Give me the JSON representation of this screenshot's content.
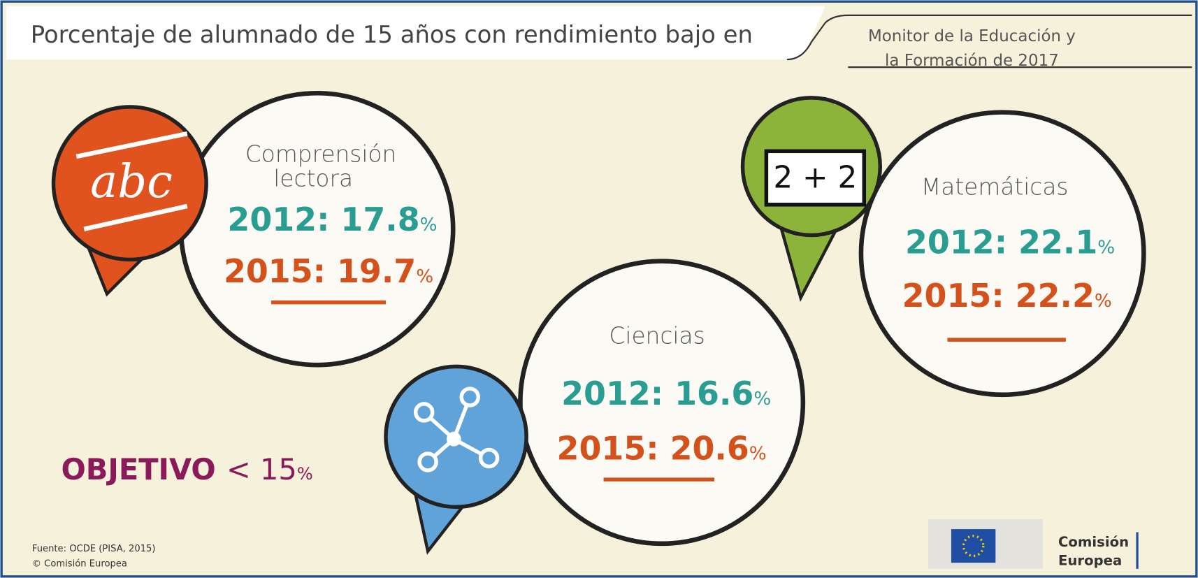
{
  "header": {
    "title": "Porcentaje de alumnado de 15 años con rendimiento bajo en",
    "publication": [
      "Monitor de la Educación y",
      "la Formación de 2017"
    ]
  },
  "subjects": [
    {
      "name": [
        "Comprensión",
        "lectora"
      ],
      "icon": "abc",
      "results": [
        {
          "label": "2012: 17.8",
          "unit": "%"
        },
        {
          "label": "2015: 19.7",
          "unit": "%"
        }
      ]
    },
    {
      "name": [
        "Ciencias"
      ],
      "results": [
        {
          "label": "2012: 16.6",
          "unit": "%"
        },
        {
          "label": "2015: 20.6",
          "unit": "%"
        }
      ]
    },
    {
      "name": [
        "Matemáticas"
      ],
      "icon": "2 + 2",
      "results": [
        {
          "label": "2012: 22.1",
          "unit": "%"
        },
        {
          "label": "2015: 22.2",
          "unit": "%"
        }
      ]
    }
  ],
  "objective": {
    "label": "OBJETIVO",
    "value": "< 15",
    "unit": "%"
  },
  "footer": {
    "source": [
      "Fuente: OCDE (PISA, 2015)",
      "© Comisión Europea"
    ],
    "logo": [
      "Comisión",
      "Europea"
    ]
  }
}
